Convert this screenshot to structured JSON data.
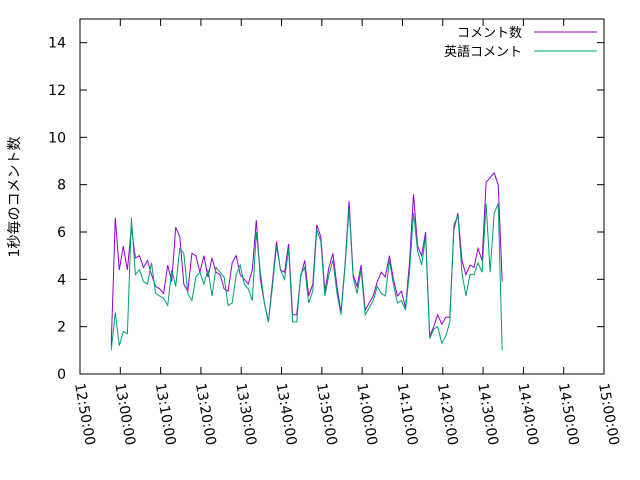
{
  "chart_data": {
    "type": "line",
    "title": "",
    "xlabel": "",
    "ylabel": "1秒毎のコメント数",
    "ylim": [
      0,
      15
    ],
    "yticks": [
      "0",
      "2",
      "4",
      "6",
      "8",
      "10",
      "12",
      "14"
    ],
    "xlim": [
      "12:50:00",
      "15:00:00"
    ],
    "xticks": [
      "12:50:00",
      "13:00:00",
      "13:10:00",
      "13:20:00",
      "13:30:00",
      "13:40:00",
      "13:50:00",
      "14:00:00",
      "14:10:00",
      "14:20:00",
      "14:30:00",
      "14:40:00",
      "14:50:00",
      "15:00:00"
    ],
    "grid": false,
    "legend_position": "top-right",
    "x_start": "12:57:45",
    "x_step_seconds": 60,
    "series": [
      {
        "name": "コメント数",
        "color": "#9400d3",
        "values": [
          1.2,
          6.6,
          4.4,
          5.4,
          4.4,
          6.2,
          4.9,
          5.0,
          4.5,
          4.8,
          4.2,
          3.7,
          3.6,
          3.4,
          4.6,
          3.9,
          6.2,
          5.8,
          3.8,
          3.5,
          5.1,
          5.0,
          4.3,
          5.0,
          4.1,
          4.9,
          4.3,
          4.2,
          3.6,
          3.5,
          4.7,
          5.0,
          4.2,
          4.0,
          3.8,
          4.4,
          6.5,
          4.0,
          3.0,
          2.2,
          3.9,
          5.6,
          4.4,
          4.3,
          5.5,
          2.5,
          2.5,
          4.1,
          4.8,
          3.3,
          3.8,
          6.3,
          5.8,
          3.5,
          4.5,
          5.1,
          3.7,
          2.6,
          4.6,
          7.3,
          4.2,
          3.7,
          4.6,
          2.7,
          3.0,
          3.3,
          3.9,
          4.3,
          4.1,
          5.0,
          4.0,
          3.3,
          3.5,
          2.8,
          4.7,
          7.6,
          5.4,
          5.0,
          6.0,
          1.6,
          2.0,
          2.5,
          2.1,
          2.4,
          2.4,
          6.1,
          6.8,
          4.8,
          4.2,
          4.6,
          4.5,
          5.3,
          4.8,
          8.1,
          8.3,
          8.5,
          8.0,
          3.9
        ]
      },
      {
        "name": "英語コメント",
        "color": "#009e73",
        "values": [
          1.0,
          2.6,
          1.2,
          1.8,
          1.7,
          6.6,
          4.2,
          4.4,
          3.9,
          3.8,
          4.7,
          3.4,
          3.3,
          3.2,
          2.9,
          4.4,
          3.7,
          5.3,
          5.1,
          3.4,
          3.1,
          4.1,
          4.3,
          3.8,
          4.4,
          3.3,
          4.5,
          4.3,
          4.1,
          2.9,
          3.0,
          4.2,
          4.6,
          3.8,
          3.6,
          3.1,
          6.0,
          4.3,
          3.0,
          2.2,
          3.7,
          5.4,
          4.4,
          4.0,
          5.3,
          2.2,
          2.2,
          4.2,
          4.5,
          3.0,
          3.5,
          6.1,
          5.6,
          3.3,
          4.2,
          4.8,
          3.4,
          2.5,
          4.5,
          7.0,
          4.1,
          3.4,
          4.4,
          2.5,
          2.8,
          3.1,
          3.7,
          3.4,
          3.3,
          4.8,
          3.8,
          3.0,
          3.1,
          2.7,
          4.3,
          6.8,
          5.2,
          4.6,
          5.8,
          1.5,
          1.9,
          2.0,
          1.3,
          1.6,
          2.2,
          6.3,
          6.7,
          4.3,
          3.3,
          4.2,
          4.2,
          4.7,
          4.3,
          7.2,
          4.3,
          6.8,
          7.2,
          1.0
        ]
      }
    ]
  }
}
